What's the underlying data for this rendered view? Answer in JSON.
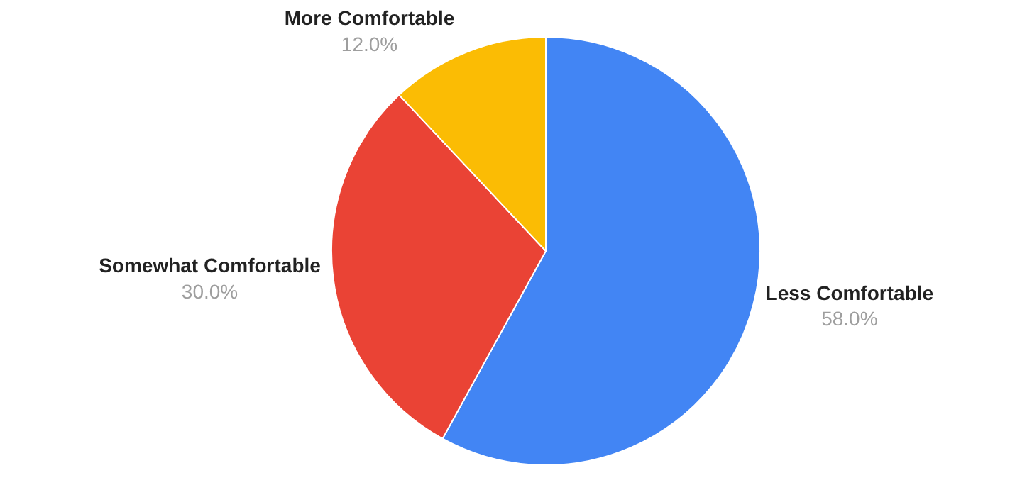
{
  "chart_data": {
    "type": "pie",
    "categories": [
      "Less Comfortable",
      "Somewhat Comfortable",
      "More Comfortable"
    ],
    "values": [
      58,
      30,
      12
    ],
    "colors": [
      "#4285f4",
      "#ea4335",
      "#fbbc04"
    ],
    "value_labels": [
      "58.0%",
      "30.0%",
      "12.0%"
    ],
    "legend": false
  }
}
